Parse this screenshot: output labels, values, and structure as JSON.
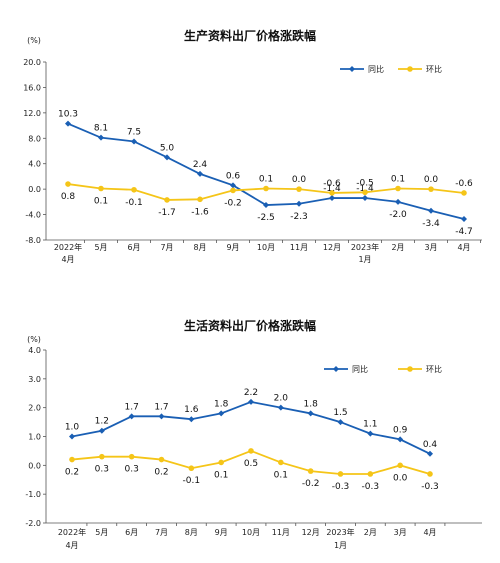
{
  "chart_data": [
    {
      "type": "line",
      "title": "生产资料出厂价格涨跌幅",
      "unit": "(%)",
      "ylim": [
        -8.0,
        20.0
      ],
      "yticks": [
        "20.0",
        "16.0",
        "12.0",
        "8.0",
        "4.0",
        "0.0",
        "-4.0",
        "-8.0"
      ],
      "ytick_values": [
        20,
        16,
        12,
        8,
        4,
        0,
        -4,
        -8
      ],
      "categories": [
        [
          "2022年",
          "4月"
        ],
        [
          "5月"
        ],
        [
          "6月"
        ],
        [
          "7月"
        ],
        [
          "8月"
        ],
        [
          "9月"
        ],
        [
          "10月"
        ],
        [
          "11月"
        ],
        [
          "12月"
        ],
        [
          "2023年",
          "1月"
        ],
        [
          "2月"
        ],
        [
          "3月"
        ],
        [
          "4月"
        ]
      ],
      "legend_placement": "top-right",
      "series": [
        {
          "name": "同比",
          "color": "#1a5fb4",
          "values": [
            10.3,
            8.1,
            7.5,
            5.0,
            2.4,
            0.6,
            -2.5,
            -2.3,
            -1.4,
            -1.4,
            -2.0,
            -3.4,
            -4.7
          ],
          "labels": [
            "10.3",
            "8.1",
            "7.5",
            "5.0",
            "2.4",
            "0.6",
            "-2.5",
            "-2.3",
            "-1.4",
            "-1.4",
            "-2.0",
            "-3.4",
            "-4.7"
          ]
        },
        {
          "name": "环比",
          "color": "#f5c518",
          "values": [
            0.8,
            0.1,
            -0.1,
            -1.7,
            -1.6,
            -0.2,
            0.1,
            0.0,
            -0.6,
            -0.5,
            0.1,
            0.0,
            -0.6
          ],
          "labels": [
            "0.8",
            "0.1",
            "-0.1",
            "-1.7",
            "-1.6",
            "-0.2",
            "0.1",
            "0.0",
            "-0.6",
            "-0.5",
            "0.1",
            "0.0",
            "-0.6"
          ]
        }
      ]
    },
    {
      "type": "line",
      "title": "生活资料出厂价格涨跌幅",
      "unit": "(%)",
      "ylim": [
        -2.0,
        4.0
      ],
      "yticks": [
        "4.0",
        "3.0",
        "2.0",
        "1.0",
        "0.0",
        "-1.0",
        "-2.0"
      ],
      "ytick_values": [
        4,
        3,
        2,
        1,
        0,
        -1,
        -2
      ],
      "categories": [
        [
          "2022年",
          "4月"
        ],
        [
          "5月"
        ],
        [
          "6月"
        ],
        [
          "7月"
        ],
        [
          "8月"
        ],
        [
          "9月"
        ],
        [
          "10月"
        ],
        [
          "11月"
        ],
        [
          "12月"
        ],
        [
          "2023年",
          "1月"
        ],
        [
          "2月"
        ],
        [
          "3月"
        ],
        [
          "4月"
        ]
      ],
      "legend_placement": "top-right",
      "series": [
        {
          "name": "同比",
          "color": "#1a5fb4",
          "values": [
            1.0,
            1.2,
            1.7,
            1.7,
            1.6,
            1.8,
            2.2,
            2.0,
            1.8,
            1.5,
            1.1,
            0.9,
            0.4
          ],
          "labels": [
            "1.0",
            "1.2",
            "1.7",
            "1.7",
            "1.6",
            "1.8",
            "2.2",
            "2.0",
            "1.8",
            "1.5",
            "1.1",
            "0.9",
            "0.4"
          ]
        },
        {
          "name": "环比",
          "color": "#f5c518",
          "values": [
            0.2,
            0.3,
            0.3,
            0.2,
            -0.1,
            0.1,
            0.5,
            0.1,
            -0.2,
            -0.3,
            -0.3,
            0.0,
            -0.3
          ],
          "labels": [
            "0.2",
            "0.3",
            "0.3",
            "0.2",
            "-0.1",
            "0.1",
            "0.5",
            "0.1",
            "-0.2",
            "-0.3",
            "-0.3",
            "0.0",
            "-0.3"
          ]
        }
      ]
    }
  ]
}
